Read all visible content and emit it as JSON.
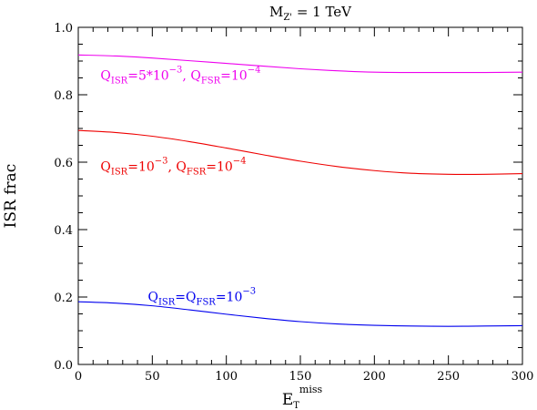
{
  "chart_data": {
    "type": "line",
    "title": {
      "main": "M",
      "sub": "Z'",
      "rest": " = 1 TeV"
    },
    "xlabel": {
      "main": "E",
      "sub": "T",
      "sup": "miss"
    },
    "ylabel": "ISR frac",
    "xlim": [
      0,
      300
    ],
    "ylim": [
      0,
      1.0
    ],
    "x_ticks": [
      0,
      50,
      100,
      150,
      200,
      250,
      300
    ],
    "x_tick_labels": [
      "0",
      "50",
      "100",
      "150",
      "200",
      "250",
      "300"
    ],
    "y_ticks": [
      0,
      0.2,
      0.4,
      0.6,
      0.8,
      1.0
    ],
    "y_tick_labels": [
      "0.0",
      "0.2",
      "0.4",
      "0.6",
      "0.8",
      "1.0"
    ],
    "grid": false,
    "series": [
      {
        "color": "#ee00ee",
        "x": [
          0,
          25,
          50,
          75,
          100,
          125,
          150,
          175,
          200,
          225,
          250,
          275,
          300
        ],
        "y": [
          0.918,
          0.915,
          0.909,
          0.901,
          0.893,
          0.885,
          0.877,
          0.871,
          0.867,
          0.866,
          0.866,
          0.866,
          0.867
        ],
        "label": [
          {
            "t": "Q",
            "s": ""
          },
          {
            "t": "ISR",
            "s": "sub"
          },
          {
            "t": "=5*10",
            "s": ""
          },
          {
            "t": "−3",
            "s": "sup"
          },
          {
            "t": ",  Q",
            "s": ""
          },
          {
            "t": "FSR",
            "s": "sub"
          },
          {
            "t": "=10",
            "s": ""
          },
          {
            "t": "−4",
            "s": "sup"
          }
        ],
        "label_at": [
          15,
          0.845
        ]
      },
      {
        "color": "#ee0000",
        "x": [
          0,
          25,
          50,
          75,
          100,
          125,
          150,
          175,
          200,
          225,
          250,
          275,
          300
        ],
        "y": [
          0.694,
          0.688,
          0.677,
          0.661,
          0.642,
          0.622,
          0.603,
          0.587,
          0.575,
          0.567,
          0.564,
          0.564,
          0.566
        ],
        "label": [
          {
            "t": "Q",
            "s": ""
          },
          {
            "t": "ISR",
            "s": "sub"
          },
          {
            "t": "=10",
            "s": ""
          },
          {
            "t": "−3",
            "s": "sup"
          },
          {
            "t": ",  Q",
            "s": ""
          },
          {
            "t": "FSR",
            "s": "sub"
          },
          {
            "t": "=10",
            "s": ""
          },
          {
            "t": "−4",
            "s": "sup"
          }
        ],
        "label_at": [
          15,
          0.575
        ]
      },
      {
        "color": "#0000ee",
        "x": [
          0,
          25,
          50,
          75,
          100,
          125,
          150,
          175,
          200,
          225,
          250,
          275,
          300
        ],
        "y": [
          0.186,
          0.182,
          0.174,
          0.162,
          0.149,
          0.137,
          0.127,
          0.12,
          0.116,
          0.114,
          0.113,
          0.114,
          0.115
        ],
        "label": [
          {
            "t": "Q",
            "s": ""
          },
          {
            "t": "ISR",
            "s": "sub"
          },
          {
            "t": "=Q",
            "s": ""
          },
          {
            "t": "FSR",
            "s": "sub"
          },
          {
            "t": "=10",
            "s": ""
          },
          {
            "t": "−3",
            "s": "sup"
          }
        ],
        "label_at": [
          47,
          0.188
        ]
      }
    ]
  }
}
